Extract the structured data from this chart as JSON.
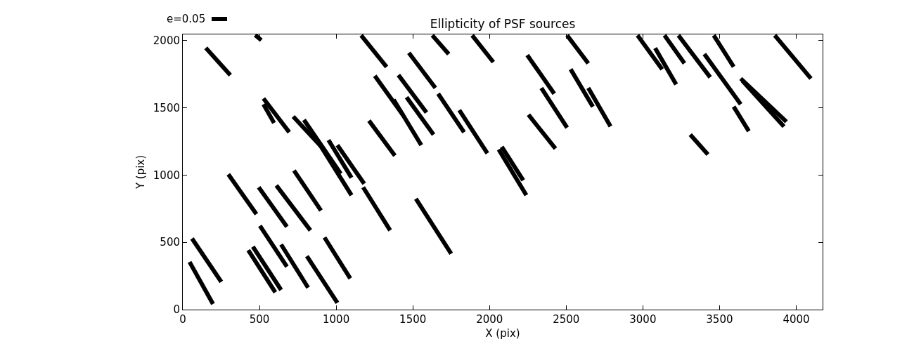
{
  "chart_data": {
    "type": "line",
    "title": "Ellipticity of PSF sources",
    "xlabel": "X (pix)",
    "ylabel": "Y (pix)",
    "annotations": [
      "e=0.05"
    ],
    "xlim": [
      0,
      4172
    ],
    "ylim": [
      0,
      2045
    ],
    "xticks": [
      0,
      500,
      1000,
      1500,
      2000,
      2500,
      3000,
      3500,
      4000
    ],
    "yticks": [
      0,
      500,
      1000,
      1500,
      2000
    ],
    "grid": false,
    "series": [
      {
        "color": "#000000",
        "x": [
          472,
          512
        ],
        "values": [
          2040,
          2002
        ]
      },
      {
        "color": "#000000",
        "x": [
          150,
          310
        ],
        "values": [
          1945,
          1742
        ]
      },
      {
        "color": "#000000",
        "x": [
          1163,
          1329
        ],
        "values": [
          2038,
          1803
        ]
      },
      {
        "color": "#000000",
        "x": [
          1252,
          1436
        ],
        "values": [
          1737,
          1445
        ]
      },
      {
        "color": "#000000",
        "x": [
          526,
          694
        ],
        "values": [
          1569,
          1318
        ]
      },
      {
        "color": "#000000",
        "x": [
          526,
          595
        ],
        "values": [
          1526,
          1387
        ]
      },
      {
        "color": "#000000",
        "x": [
          720,
          920
        ],
        "values": [
          1435,
          1190
        ]
      },
      {
        "color": "#000000",
        "x": [
          790,
          1030
        ],
        "values": [
          1410,
          1010
        ]
      },
      {
        "color": "#000000",
        "x": [
          880,
          1100
        ],
        "values": [
          1250,
          850
        ]
      },
      {
        "color": "#000000",
        "x": [
          950,
          1100
        ],
        "values": [
          1260,
          980
        ]
      },
      {
        "color": "#000000",
        "x": [
          1008,
          1183
        ],
        "values": [
          1222,
          935
        ]
      },
      {
        "color": "#000000",
        "x": [
          1214,
          1383
        ],
        "values": [
          1404,
          1144
        ]
      },
      {
        "color": "#000000",
        "x": [
          297,
          480
        ],
        "values": [
          1005,
          710
        ]
      },
      {
        "color": "#000000",
        "x": [
          495,
          679
        ],
        "values": [
          909,
          615
        ]
      },
      {
        "color": "#000000",
        "x": [
          610,
          832
        ],
        "values": [
          923,
          589
        ]
      },
      {
        "color": "#000000",
        "x": [
          725,
          901
        ],
        "values": [
          1034,
          736
        ]
      },
      {
        "color": "#000000",
        "x": [
          1176,
          1352
        ],
        "values": [
          909,
          589
        ]
      },
      {
        "color": "#000000",
        "x": [
          60,
          251
        ],
        "values": [
          528,
          206
        ]
      },
      {
        "color": "#000000",
        "x": [
          44,
          197
        ],
        "values": [
          354,
          42
        ]
      },
      {
        "color": "#000000",
        "x": [
          427,
          603
        ],
        "values": [
          441,
          128
        ]
      },
      {
        "color": "#000000",
        "x": [
          457,
          641
        ],
        "values": [
          467,
          146
        ]
      },
      {
        "color": "#000000",
        "x": [
          503,
          679
        ],
        "values": [
          623,
          319
        ]
      },
      {
        "color": "#000000",
        "x": [
          641,
          817
        ],
        "values": [
          484,
          163
        ]
      },
      {
        "color": "#000000",
        "x": [
          809,
          1008
        ],
        "values": [
          397,
          50
        ]
      },
      {
        "color": "#000000",
        "x": [
          924,
          1092
        ],
        "values": [
          536,
          232
        ]
      },
      {
        "color": "#000000",
        "x": [
          1627,
          1734
        ],
        "values": [
          2038,
          1899
        ]
      },
      {
        "color": "#000000",
        "x": [
          1887,
          2025
        ],
        "values": [
          2038,
          1839
        ]
      },
      {
        "color": "#000000",
        "x": [
          1474,
          1647
        ],
        "values": [
          1908,
          1647
        ]
      },
      {
        "color": "#000000",
        "x": [
          1406,
          1589
        ],
        "values": [
          1743,
          1465
        ]
      },
      {
        "color": "#000000",
        "x": [
          1459,
          1635
        ],
        "values": [
          1578,
          1300
        ]
      },
      {
        "color": "#000000",
        "x": [
          1375,
          1555
        ],
        "values": [
          1560,
          1222
        ]
      },
      {
        "color": "#000000",
        "x": [
          1665,
          1834
        ],
        "values": [
          1604,
          1318
        ]
      },
      {
        "color": "#000000",
        "x": [
          1803,
          1986
        ],
        "values": [
          1482,
          1161
        ]
      },
      {
        "color": "#000000",
        "x": [
          2080,
          2220
        ],
        "values": [
          1210,
          960
        ]
      },
      {
        "color": "#000000",
        "x": [
          2060,
          2240
        ],
        "values": [
          1190,
          850
        ]
      },
      {
        "color": "#000000",
        "x": [
          1520,
          1750
        ],
        "values": [
          823,
          415
        ]
      },
      {
        "color": "#000000",
        "x": [
          2246,
          2422
        ],
        "values": [
          1891,
          1604
        ]
      },
      {
        "color": "#000000",
        "x": [
          2338,
          2506
        ],
        "values": [
          1647,
          1352
        ]
      },
      {
        "color": "#000000",
        "x": [
          2254,
          2430
        ],
        "values": [
          1448,
          1196
        ]
      },
      {
        "color": "#000000",
        "x": [
          2506,
          2644
        ],
        "values": [
          2038,
          1830
        ]
      },
      {
        "color": "#000000",
        "x": [
          2529,
          2674
        ],
        "values": [
          1786,
          1508
        ]
      },
      {
        "color": "#000000",
        "x": [
          2644,
          2789
        ],
        "values": [
          1647,
          1361
        ]
      },
      {
        "color": "#000000",
        "x": [
          2965,
          3126
        ],
        "values": [
          2038,
          1786
        ]
      },
      {
        "color": "#000000",
        "x": [
          3080,
          3217
        ],
        "values": [
          1943,
          1673
        ]
      },
      {
        "color": "#000000",
        "x": [
          3141,
          3271
        ],
        "values": [
          2038,
          1830
        ]
      },
      {
        "color": "#000000",
        "x": [
          3232,
          3439
        ],
        "values": [
          2038,
          1726
        ]
      },
      {
        "color": "#000000",
        "x": [
          3462,
          3592
        ],
        "values": [
          2038,
          1804
        ]
      },
      {
        "color": "#000000",
        "x": [
          3401,
          3638
        ],
        "values": [
          1899,
          1526
        ]
      },
      {
        "color": "#000000",
        "x": [
          3592,
          3691
        ],
        "values": [
          1508,
          1326
        ]
      },
      {
        "color": "#000000",
        "x": [
          3638,
          3936
        ],
        "values": [
          1717,
          1396
        ]
      },
      {
        "color": "#000000",
        "x": [
          3650,
          3920
        ],
        "values": [
          1700,
          1360
        ]
      },
      {
        "color": "#000000",
        "x": [
          3860,
          4096
        ],
        "values": [
          2038,
          1717
        ]
      },
      {
        "color": "#000000",
        "x": [
          3309,
          3424
        ],
        "values": [
          1300,
          1153
        ]
      }
    ]
  }
}
